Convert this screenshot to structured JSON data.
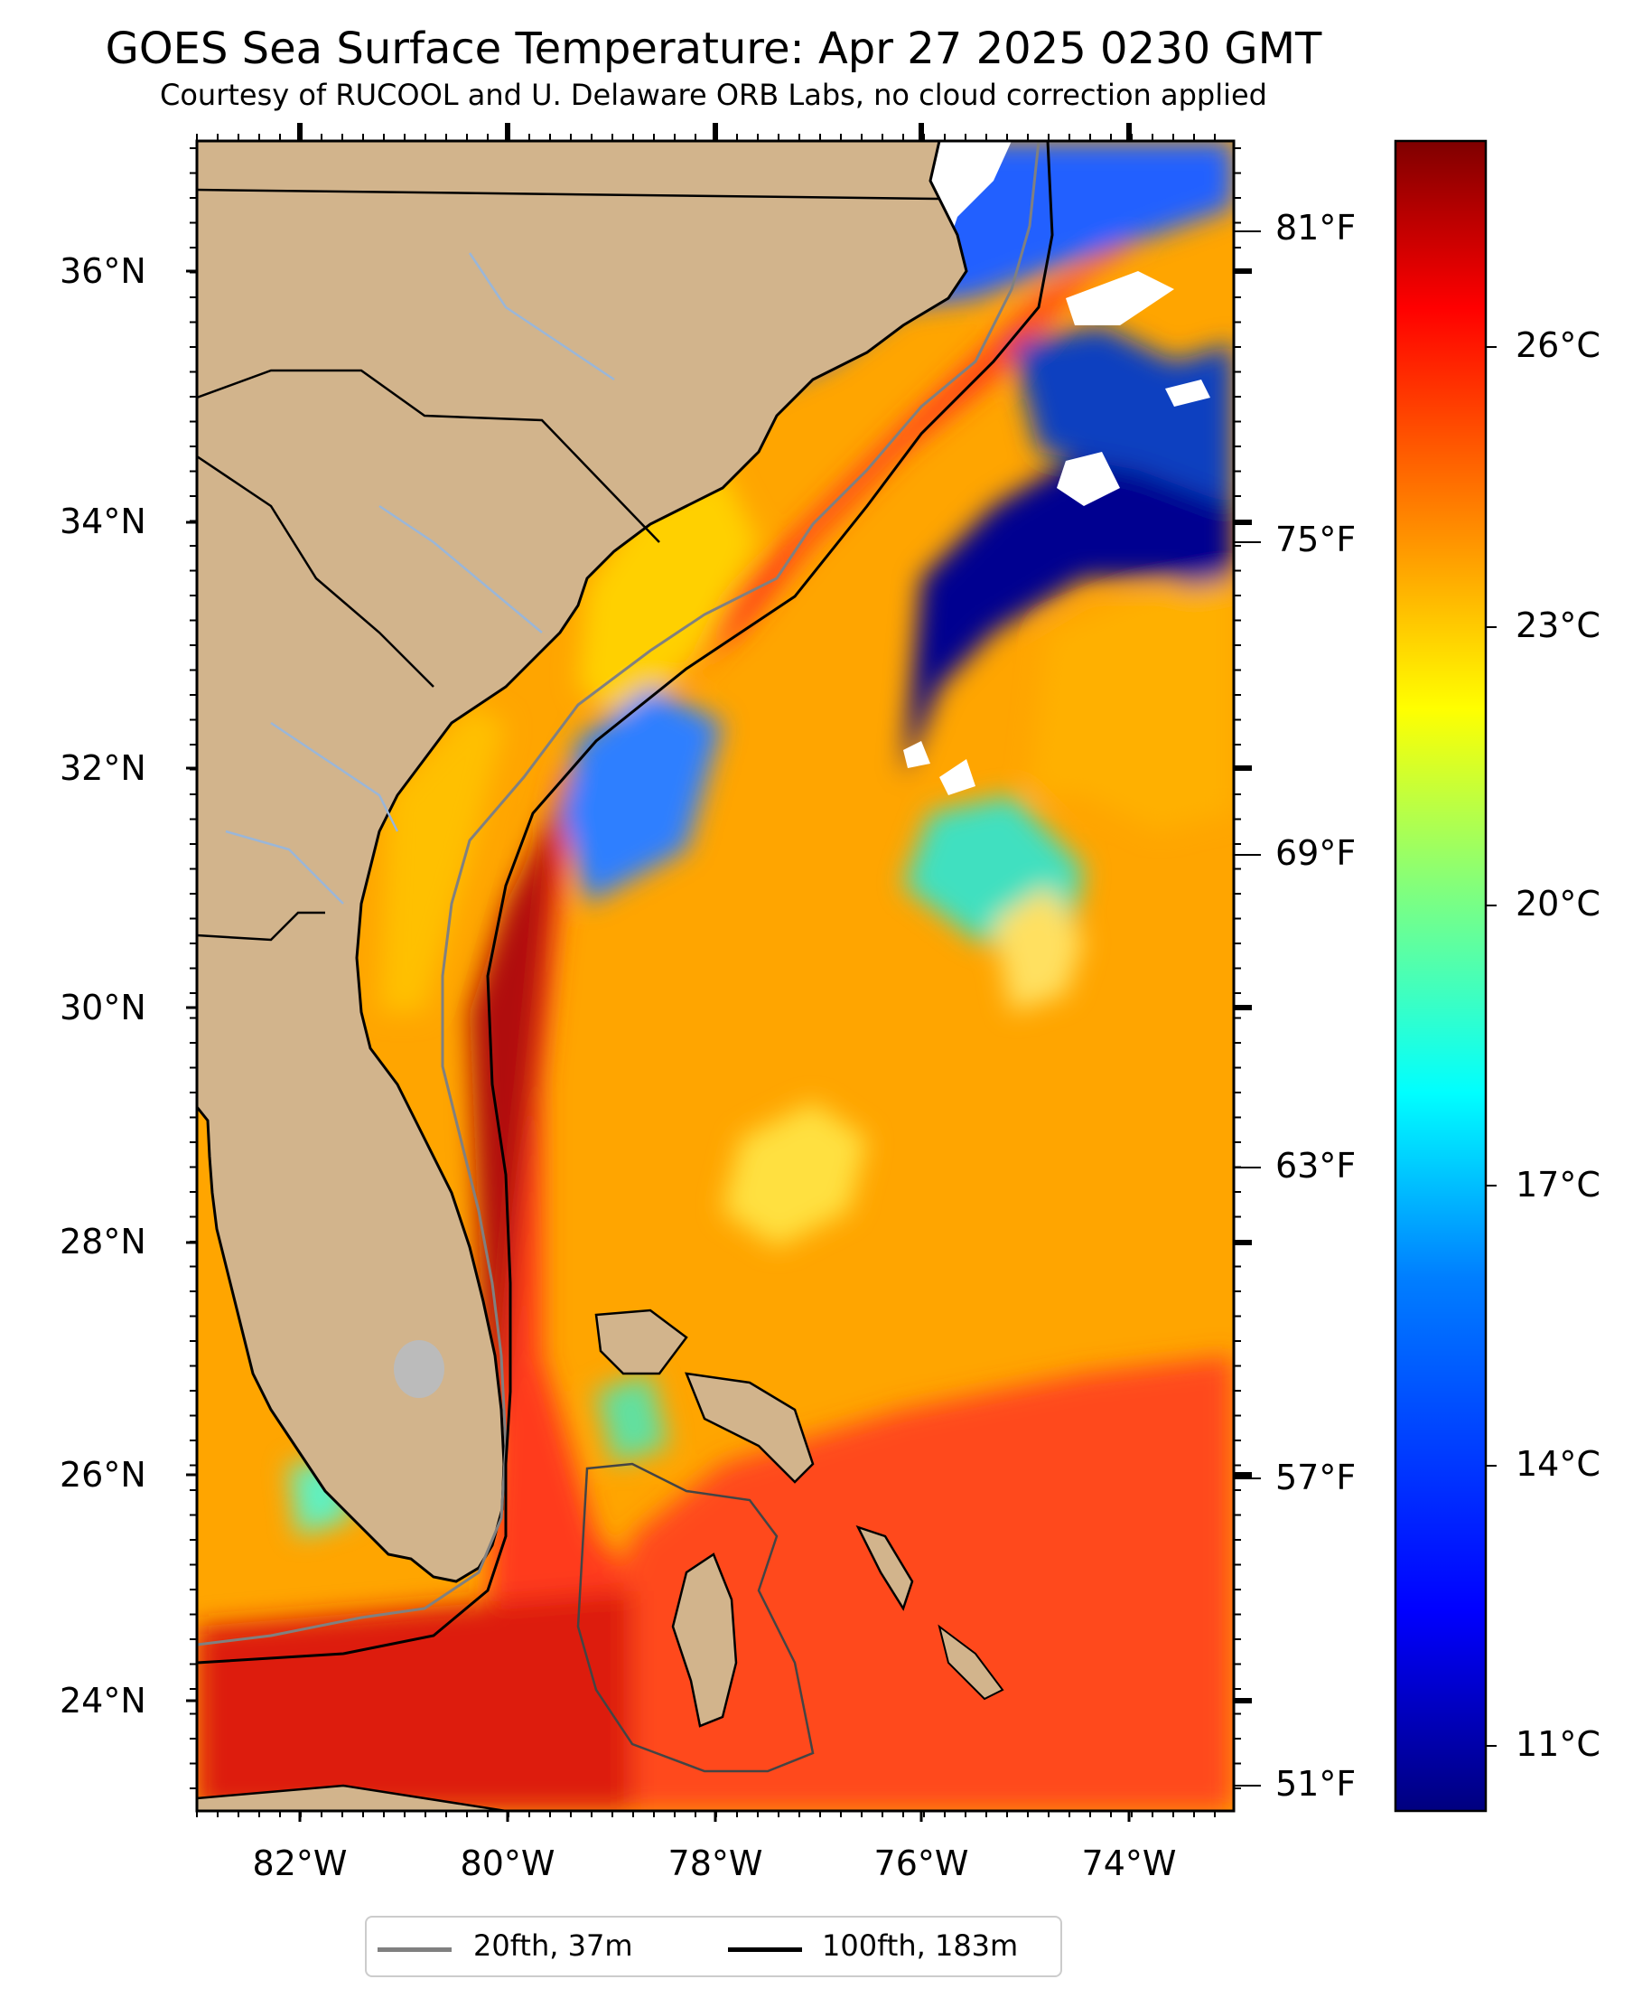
{
  "title": "GOES Sea Surface Temperature: Apr 27 2025 0230 GMT",
  "subtitle": "Courtesy of RUCOOL and U. Delaware ORB Labs, no cloud correction applied",
  "axes": {
    "lat_labels": [
      "36°N",
      "34°N",
      "32°N",
      "30°N",
      "28°N",
      "26°N",
      "24°N"
    ],
    "lon_labels": [
      "82°W",
      "80°W",
      "78°W",
      "76°W",
      "74°W"
    ],
    "f_labels": [
      "81°F",
      "75°F",
      "69°F",
      "63°F",
      "57°F",
      "51°F"
    ]
  },
  "colorbar": {
    "labels": [
      "26°C",
      "23°C",
      "20°C",
      "17°C",
      "14°C",
      "11°C"
    ],
    "colormap": [
      "#00007f",
      "#0000ff",
      "#007fff",
      "#00ffff",
      "#7fff7f",
      "#ffff00",
      "#ff7f00",
      "#ff0000",
      "#7f0000"
    ]
  },
  "legend": {
    "items": [
      {
        "label": "20fth, 37m",
        "color": "#808080"
      },
      {
        "label": "100fth, 183m",
        "color": "#000000"
      }
    ]
  },
  "colors": {
    "land": "#d2b48c",
    "cloud": "#ffffff",
    "lake": "#bbbbbb"
  }
}
